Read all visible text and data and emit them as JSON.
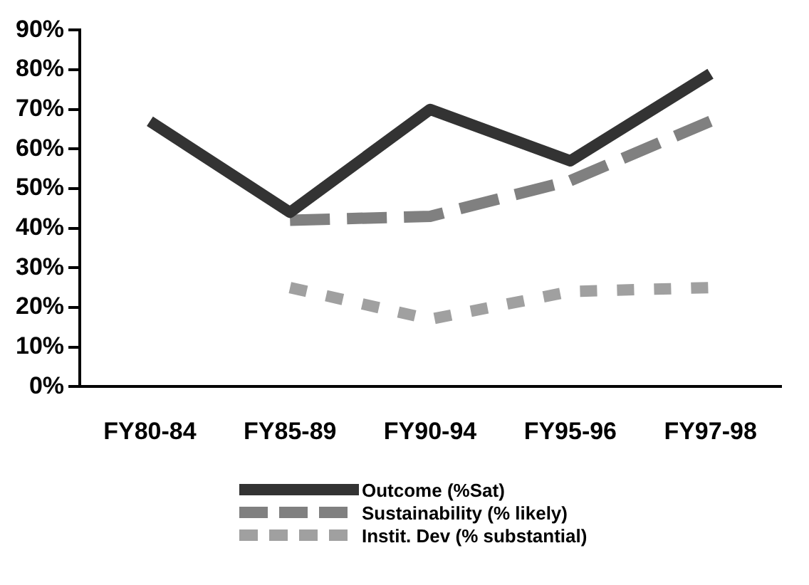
{
  "chart_data": {
    "type": "line",
    "categories": [
      "FY80-84",
      "FY85-89",
      "FY90-94",
      "FY95-96",
      "FY97-98"
    ],
    "series": [
      {
        "name": "Outcome (%Sat)",
        "color": "#333333",
        "line_style": "solid",
        "values": [
          67,
          44,
          70,
          57,
          79
        ]
      },
      {
        "name": "Sustainability (% likely)",
        "color": "#808080",
        "line_style": "dashed",
        "values": [
          null,
          42,
          43,
          52,
          67
        ]
      },
      {
        "name": "Instit. Dev (% substantial)",
        "color": "#a0a0a0",
        "line_style": "dotted",
        "values": [
          null,
          25,
          17,
          24,
          25
        ]
      }
    ],
    "ylim": [
      0,
      90
    ],
    "yticks": [
      {
        "value": 0,
        "label": "0%"
      },
      {
        "value": 10,
        "label": "10%"
      },
      {
        "value": 20,
        "label": "20%"
      },
      {
        "value": 30,
        "label": "30%"
      },
      {
        "value": 40,
        "label": "40%"
      },
      {
        "value": 50,
        "label": "50%"
      },
      {
        "value": 60,
        "label": "60%"
      },
      {
        "value": 70,
        "label": "70%"
      },
      {
        "value": 80,
        "label": "80%"
      },
      {
        "value": 90,
        "label": "90%"
      }
    ],
    "grid": false,
    "legend": "bottom",
    "marker": "none"
  }
}
